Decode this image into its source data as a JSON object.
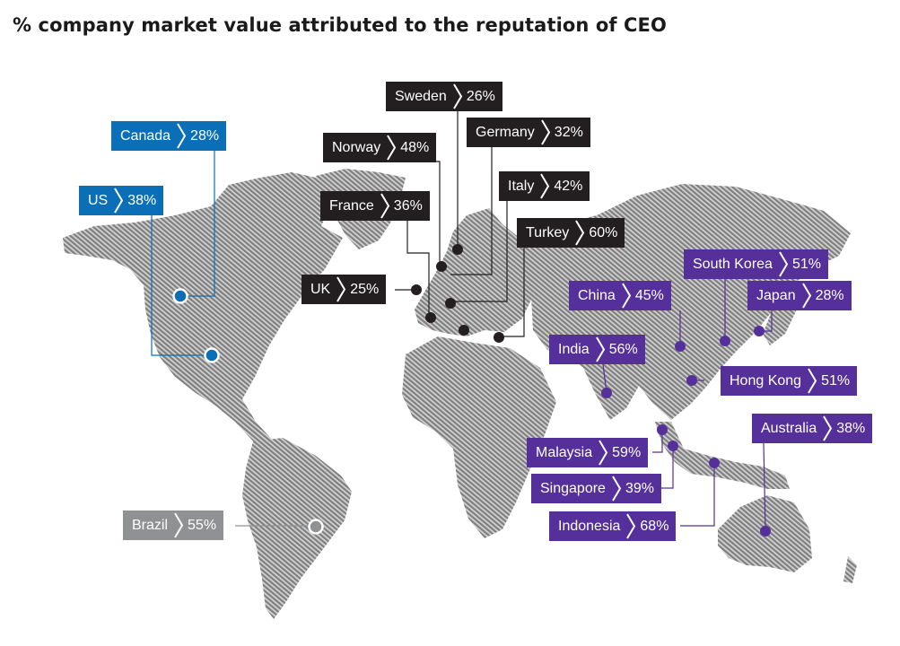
{
  "title": "% company market value attributed to the reputation of CEO",
  "colors": {
    "americas_north": "#0a6fb7",
    "europe": "#231f20",
    "asia_pacific": "#56309a",
    "south_america": "#8f9193",
    "land_hatch": "#8c8c8c"
  },
  "countries": [
    {
      "name": "Canada",
      "value": "28%",
      "group": "na"
    },
    {
      "name": "US",
      "value": "38%",
      "group": "na"
    },
    {
      "name": "Sweden",
      "value": "26%",
      "group": "eu"
    },
    {
      "name": "Germany",
      "value": "32%",
      "group": "eu"
    },
    {
      "name": "Norway",
      "value": "48%",
      "group": "eu"
    },
    {
      "name": "France",
      "value": "36%",
      "group": "eu"
    },
    {
      "name": "Italy",
      "value": "42%",
      "group": "eu"
    },
    {
      "name": "Turkey",
      "value": "60%",
      "group": "eu"
    },
    {
      "name": "UK",
      "value": "25%",
      "group": "eu"
    },
    {
      "name": "South Korea",
      "value": "51%",
      "group": "as"
    },
    {
      "name": "China",
      "value": "45%",
      "group": "as"
    },
    {
      "name": "Japan",
      "value": "28%",
      "group": "as"
    },
    {
      "name": "India",
      "value": "56%",
      "group": "as"
    },
    {
      "name": "Hong Kong",
      "value": "51%",
      "group": "as"
    },
    {
      "name": "Malaysia",
      "value": "59%",
      "group": "as"
    },
    {
      "name": "Australia",
      "value": "38%",
      "group": "as"
    },
    {
      "name": "Singapore",
      "value": "39%",
      "group": "as"
    },
    {
      "name": "Indonesia",
      "value": "68%",
      "group": "as"
    },
    {
      "name": "Brazil",
      "value": "55%",
      "group": "sa"
    }
  ]
}
